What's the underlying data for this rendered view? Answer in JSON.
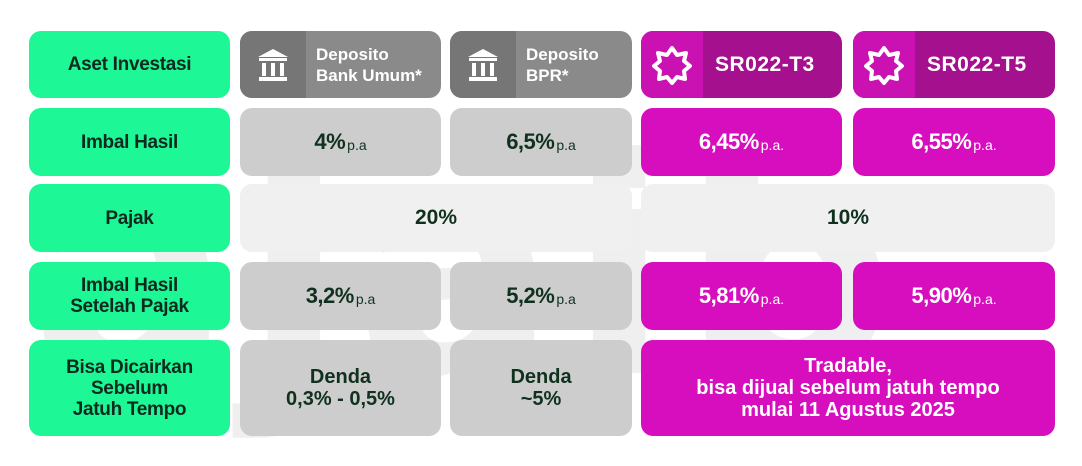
{
  "watermark": "ajaib",
  "headers": {
    "aset_investasi": "Aset Investasi",
    "deposito_bank": "Deposito\nBank Umum*",
    "deposito_bpr": "Deposito\nBPR*",
    "sr_t3": "SR022-T3",
    "sr_t5": "SR022-T5"
  },
  "rows": {
    "imbal_hasil": {
      "label": "Imbal Hasil",
      "bank": "4%",
      "bank_unit": "p.a",
      "bpr": "6,5%",
      "bpr_unit": "p.a",
      "t3": "6,45%",
      "t3_unit": "p.a.",
      "t5": "6,55%",
      "t5_unit": "p.a."
    },
    "pajak": {
      "label": "Pajak",
      "deposito": "20%",
      "sr": "10%"
    },
    "imbal_setelah_pajak": {
      "label": "Imbal Hasil\nSetelah Pajak",
      "bank": "3,2%",
      "bank_unit": "p.a",
      "bpr": "5,2%",
      "bpr_unit": "p.a",
      "t3": "5,81%",
      "t3_unit": "p.a.",
      "t5": "5,90%",
      "t5_unit": "p.a."
    },
    "pencairan": {
      "label": "Bisa Dicairkan\nSebelum\nJatuh Tempo",
      "bank": "Denda\n0,3% - 0,5%",
      "bpr": "Denda\n~5%",
      "sr": "Tradable,\nbisa dijual sebelum jatuh tempo\nmulai 11 Agustus 2025"
    }
  },
  "icons": {
    "deposito": "bank-building-icon",
    "sbn": "star-badge-icon"
  },
  "colors": {
    "label_green": "#1ef795",
    "gray_cell": "#cdcdcd",
    "gray_header": "#8a8a8a",
    "magenta_cell": "#d70ebd",
    "magenta_header": "#a5108e"
  }
}
